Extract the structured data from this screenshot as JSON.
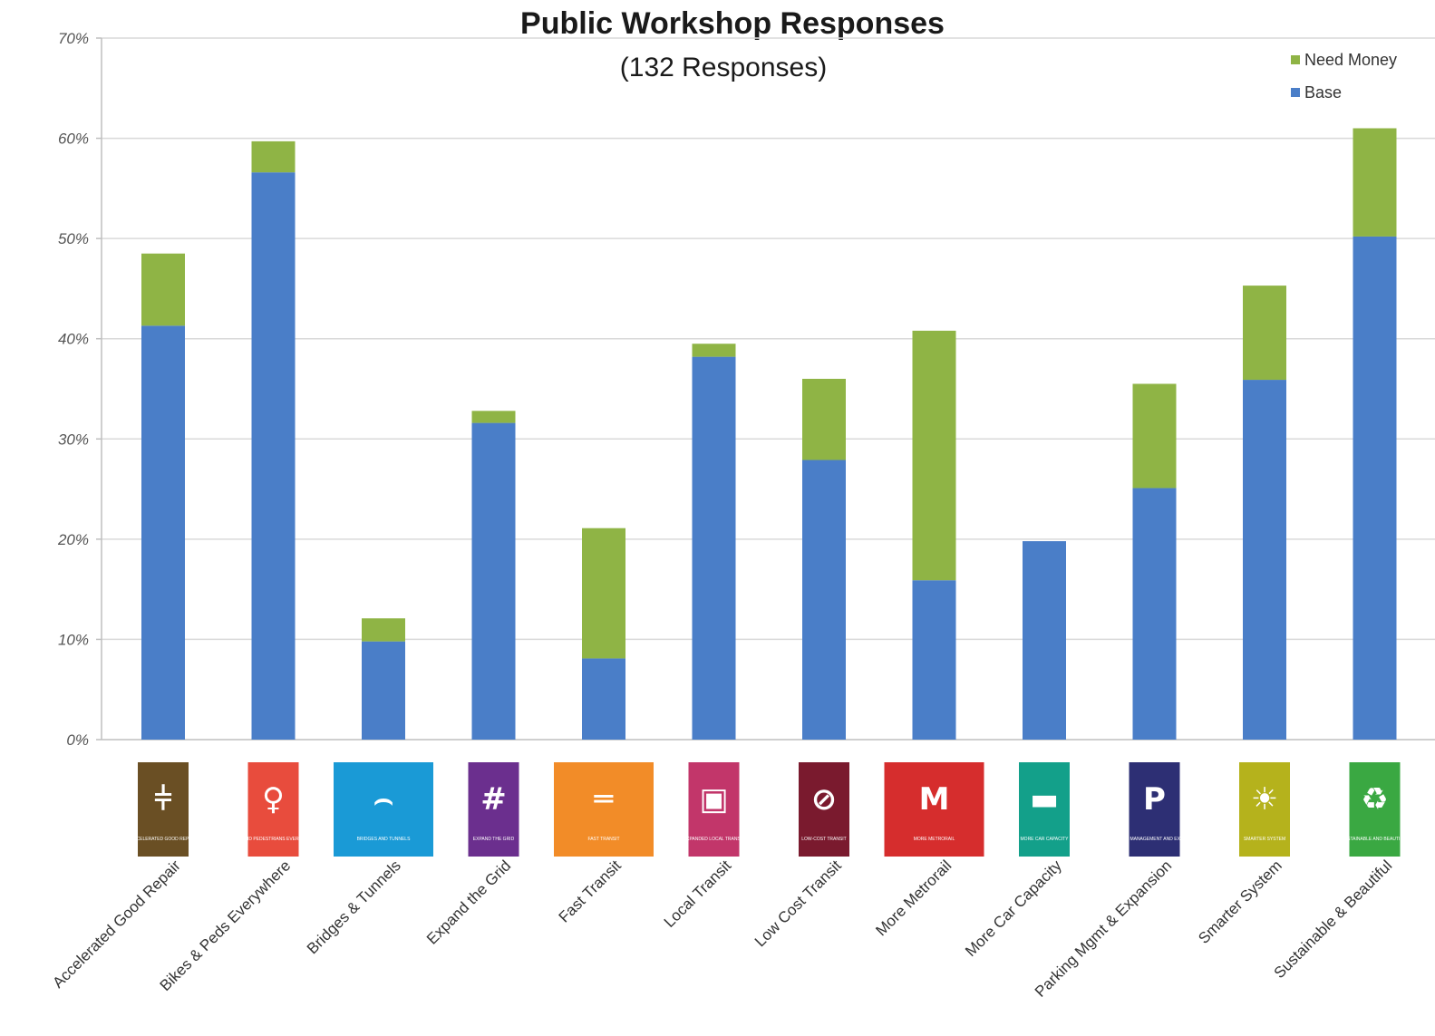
{
  "chart_data": {
    "type": "bar",
    "stacked": true,
    "title": "Public Workshop Responses",
    "subtitle": "(132 Responses)",
    "categories": [
      "Accelerated Good Repair",
      "Bikes & Peds Everywhere",
      "Bridges & Tunnels",
      "Expand the Grid",
      "Fast Transit",
      "Local Transit",
      "Low Cost Transit",
      "More Metrorail",
      "More Car Capacity",
      "Parking Mgmt & Expansion",
      "Smarter System",
      "Sustainable & Beautiful"
    ],
    "series": [
      {
        "name": "Base",
        "color": "#4a7ec8",
        "values": [
          41.3,
          56.6,
          9.8,
          31.6,
          8.1,
          38.2,
          27.9,
          15.9,
          19.8,
          25.1,
          35.9,
          50.2
        ]
      },
      {
        "name": "Need Money",
        "color": "#8fb445",
        "values": [
          7.2,
          3.1,
          2.3,
          1.2,
          13.0,
          1.3,
          8.1,
          24.9,
          0.0,
          10.4,
          9.4,
          10.8
        ]
      }
    ],
    "ylim": [
      0,
      70
    ],
    "yticks": [
      "0%",
      "10%",
      "20%",
      "30%",
      "40%",
      "50%",
      "60%",
      "70%"
    ],
    "grid": true,
    "legend": {
      "position": "top-right",
      "entries": [
        "Need Money",
        "Base"
      ]
    },
    "category_tiles": [
      {
        "icon": "rail-track-icon",
        "color": "#6a4f24",
        "caption": "ACCELERATED GOOD REPAIR"
      },
      {
        "icon": "bike-pedestrian-icon",
        "color": "#e84c3d",
        "caption": "BIKES AND PEDESTRIANS EVERYWHERE"
      },
      {
        "icon": "bridge-icon",
        "color": "#1a9ad6",
        "caption": "BRIDGES AND TUNNELS"
      },
      {
        "icon": "grid-icon",
        "color": "#6b2f8e",
        "caption": "EXPAND THE GRID"
      },
      {
        "icon": "train-icon",
        "color": "#f28c28",
        "caption": "FAST TRANSIT"
      },
      {
        "icon": "bus-icon",
        "color": "#c2366a",
        "caption": "EXPANDED LOCAL TRANSIT"
      },
      {
        "icon": "no-cost-icon",
        "color": "#7a1a2e",
        "caption": "LOW-COST TRANSIT"
      },
      {
        "icon": "metro-icon",
        "color": "#d62d2d",
        "caption": "MORE METRORAIL"
      },
      {
        "icon": "car-icon",
        "color": "#13a08a",
        "caption": "MORE CAR CAPACITY"
      },
      {
        "icon": "parking-icon",
        "color": "#2d2f74",
        "caption": "PARKING MANAGEMENT AND EXPANSION"
      },
      {
        "icon": "lightbulb-icon",
        "color": "#b5b21c",
        "caption": "SMARTER SYSTEM"
      },
      {
        "icon": "recycle-icon",
        "color": "#3aa842",
        "caption": "SUSTAINABLE AND BEAUTIFUL"
      }
    ]
  }
}
